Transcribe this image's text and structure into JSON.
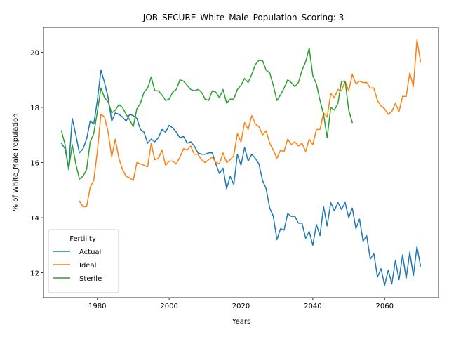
{
  "chart_data": {
    "type": "line",
    "title": "JOB_SECURE_White_Male_Population_Scoring: 3",
    "xlabel": "Years",
    "ylabel": "% of White_Male Population",
    "xlim": [
      1965,
      2075
    ],
    "ylim": [
      11.1,
      20.9
    ],
    "xticks": [
      1980,
      2000,
      2020,
      2040,
      2060
    ],
    "yticks": [
      12,
      14,
      16,
      18,
      20
    ],
    "grid": false,
    "legend": {
      "title": "Fertility",
      "placement": "lower-left"
    },
    "series": [
      {
        "name": "Actual",
        "color": "#1f77b4",
        "x": [
          1970,
          1971,
          1972,
          1973,
          1974,
          1975,
          1976,
          1977,
          1978,
          1979,
          1980,
          1981,
          1982,
          1983,
          1984,
          1985,
          1986,
          1987,
          1988,
          1989,
          1990,
          1991,
          1992,
          1993,
          1994,
          1995,
          1996,
          1997,
          1998,
          1999,
          2000,
          2001,
          2002,
          2003,
          2004,
          2005,
          2006,
          2007,
          2008,
          2009,
          2010,
          2011,
          2012,
          2013,
          2014,
          2015,
          2016,
          2017,
          2018,
          2019,
          2020,
          2021,
          2022,
          2023,
          2024,
          2025,
          2026,
          2027,
          2028,
          2029,
          2030,
          2031,
          2032,
          2033,
          2034,
          2035,
          2036,
          2037,
          2038,
          2039,
          2040,
          2041,
          2042,
          2043,
          2044,
          2045,
          2046,
          2047,
          2048,
          2049,
          2050,
          2051,
          2052,
          2053,
          2054,
          2055,
          2056,
          2057,
          2058,
          2059,
          2060,
          2061,
          2062,
          2063,
          2064,
          2065,
          2066,
          2067,
          2068,
          2069,
          2070
        ],
        "y": [
          16.7,
          16.5,
          15.8,
          17.6,
          17.0,
          16.35,
          16.5,
          16.85,
          17.5,
          17.4,
          18.25,
          19.35,
          18.9,
          18.35,
          17.5,
          17.8,
          17.75,
          17.65,
          17.5,
          17.75,
          17.7,
          17.6,
          17.2,
          17.1,
          16.7,
          16.85,
          16.75,
          16.9,
          17.2,
          17.1,
          17.35,
          17.25,
          17.1,
          16.9,
          16.95,
          16.7,
          16.75,
          16.6,
          16.35,
          16.3,
          16.3,
          16.35,
          16.35,
          15.95,
          15.6,
          15.8,
          15.05,
          15.5,
          15.2,
          16.3,
          15.9,
          16.55,
          16.05,
          16.3,
          16.15,
          15.95,
          15.35,
          15.05,
          14.35,
          14.05,
          13.2,
          13.6,
          13.55,
          14.15,
          14.05,
          14.05,
          13.8,
          13.8,
          13.25,
          13.5,
          13.0,
          13.75,
          13.35,
          14.4,
          13.7,
          14.55,
          14.25,
          14.55,
          14.3,
          14.55,
          14.0,
          14.35,
          13.6,
          13.95,
          13.15,
          13.35,
          12.5,
          12.7,
          11.85,
          12.15,
          11.55,
          12.1,
          11.6,
          12.45,
          11.75,
          12.65,
          11.8,
          12.75,
          11.9,
          12.95,
          12.25
        ]
      },
      {
        "name": "Ideal",
        "color": "#ff7f0e",
        "x": [
          1975,
          1976,
          1977,
          1978,
          1979,
          1980,
          1981,
          1982,
          1983,
          1984,
          1985,
          1986,
          1987,
          1988,
          1989,
          1990,
          1991,
          1992,
          1993,
          1994,
          1995,
          1996,
          1997,
          1998,
          1999,
          2000,
          2001,
          2002,
          2003,
          2004,
          2005,
          2006,
          2007,
          2008,
          2009,
          2010,
          2011,
          2012,
          2013,
          2014,
          2015,
          2016,
          2017,
          2018,
          2019,
          2020,
          2021,
          2022,
          2023,
          2024,
          2025,
          2026,
          2027,
          2028,
          2029,
          2030,
          2031,
          2032,
          2033,
          2034,
          2035,
          2036,
          2037,
          2038,
          2039,
          2040,
          2041,
          2042,
          2043,
          2044,
          2045,
          2046,
          2047,
          2048,
          2049,
          2050,
          2051,
          2052,
          2053,
          2054,
          2055,
          2056,
          2057,
          2058,
          2059,
          2060,
          2061,
          2062,
          2063,
          2064,
          2065,
          2066,
          2067,
          2068,
          2069,
          2070
        ],
        "y": [
          14.6,
          14.4,
          14.4,
          15.1,
          15.35,
          16.4,
          17.75,
          17.65,
          17.1,
          16.2,
          16.85,
          16.15,
          15.75,
          15.5,
          15.45,
          15.35,
          16.0,
          15.95,
          15.9,
          15.85,
          16.7,
          16.1,
          16.15,
          16.45,
          15.9,
          16.05,
          16.05,
          15.95,
          16.2,
          16.5,
          16.45,
          16.6,
          16.3,
          16.3,
          16.1,
          16.0,
          16.1,
          16.2,
          16.0,
          15.95,
          16.35,
          16.0,
          16.1,
          16.25,
          17.05,
          16.75,
          17.45,
          17.2,
          17.7,
          17.4,
          17.3,
          17.0,
          17.15,
          16.7,
          16.45,
          16.15,
          16.45,
          16.4,
          16.85,
          16.65,
          16.75,
          16.6,
          16.7,
          16.4,
          16.85,
          16.65,
          17.2,
          17.2,
          17.8,
          17.65,
          18.5,
          18.35,
          18.65,
          18.6,
          18.95,
          18.6,
          19.2,
          18.85,
          18.95,
          18.9,
          18.9,
          18.7,
          18.7,
          18.25,
          18.05,
          17.95,
          17.75,
          17.85,
          18.15,
          17.85,
          18.4,
          18.4,
          19.25,
          18.75,
          20.45,
          19.65
        ]
      },
      {
        "name": "Sterile",
        "color": "#2ca02c",
        "x": [
          1970,
          1971,
          1972,
          1973,
          1974,
          1975,
          1976,
          1977,
          1978,
          1979,
          1980,
          1981,
          1982,
          1983,
          1984,
          1985,
          1986,
          1987,
          1988,
          1989,
          1990,
          1991,
          1992,
          1993,
          1994,
          1995,
          1996,
          1997,
          1998,
          1999,
          2000,
          2001,
          2002,
          2003,
          2004,
          2005,
          2006,
          2007,
          2008,
          2009,
          2010,
          2011,
          2012,
          2013,
          2014,
          2015,
          2016,
          2017,
          2018,
          2019,
          2020,
          2021,
          2022,
          2023,
          2024,
          2025,
          2026,
          2027,
          2028,
          2029,
          2030,
          2031,
          2032,
          2033,
          2034,
          2035,
          2036,
          2037,
          2038,
          2039,
          2040,
          2041,
          2042,
          2043,
          2044,
          2045,
          2046,
          2047,
          2048,
          2049,
          2050,
          2051
        ],
        "y": [
          17.15,
          16.65,
          15.75,
          16.65,
          15.95,
          15.4,
          15.5,
          15.75,
          16.75,
          17.05,
          17.85,
          18.7,
          18.35,
          18.2,
          17.8,
          17.9,
          18.1,
          18.0,
          17.75,
          17.55,
          17.3,
          17.95,
          18.15,
          18.55,
          18.7,
          19.1,
          18.6,
          18.6,
          18.45,
          18.25,
          18.3,
          18.55,
          18.65,
          19.0,
          18.95,
          18.8,
          18.65,
          18.6,
          18.65,
          18.55,
          18.3,
          18.25,
          18.6,
          18.55,
          18.35,
          18.65,
          18.15,
          18.3,
          18.3,
          18.65,
          18.8,
          19.05,
          18.9,
          19.2,
          19.55,
          19.7,
          19.7,
          19.35,
          19.25,
          18.8,
          18.25,
          18.45,
          18.7,
          19.0,
          18.9,
          18.75,
          18.9,
          19.35,
          19.65,
          20.15,
          19.15,
          18.85,
          18.25,
          17.75,
          16.9,
          18.0,
          17.9,
          18.15,
          18.95,
          18.95,
          17.9,
          17.45
        ]
      }
    ]
  }
}
